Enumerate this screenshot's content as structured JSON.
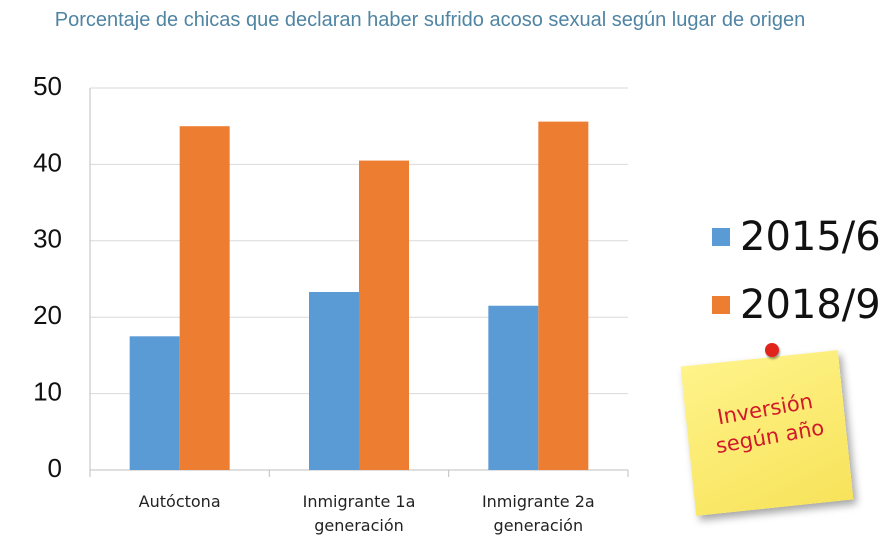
{
  "chart_data": {
    "type": "bar",
    "title": "Porcentaje de chicas que declaran haber sufrido acoso sexual según lugar de origen",
    "categories": [
      "Autóctona",
      "Inmigrante 1a generación",
      "Inmigrante 2a generación"
    ],
    "series": [
      {
        "name": "2015/6",
        "color": "#5b9bd5",
        "values": [
          17.5,
          23.3,
          21.5
        ]
      },
      {
        "name": "2018/9",
        "color": "#ed7d31",
        "values": [
          45,
          40.5,
          45.6
        ]
      }
    ],
    "ylim": [
      0,
      50
    ],
    "yticks": [
      0,
      10,
      20,
      30,
      40,
      50
    ],
    "grid": true,
    "legend": "right",
    "annotation": "Inversión según año"
  }
}
